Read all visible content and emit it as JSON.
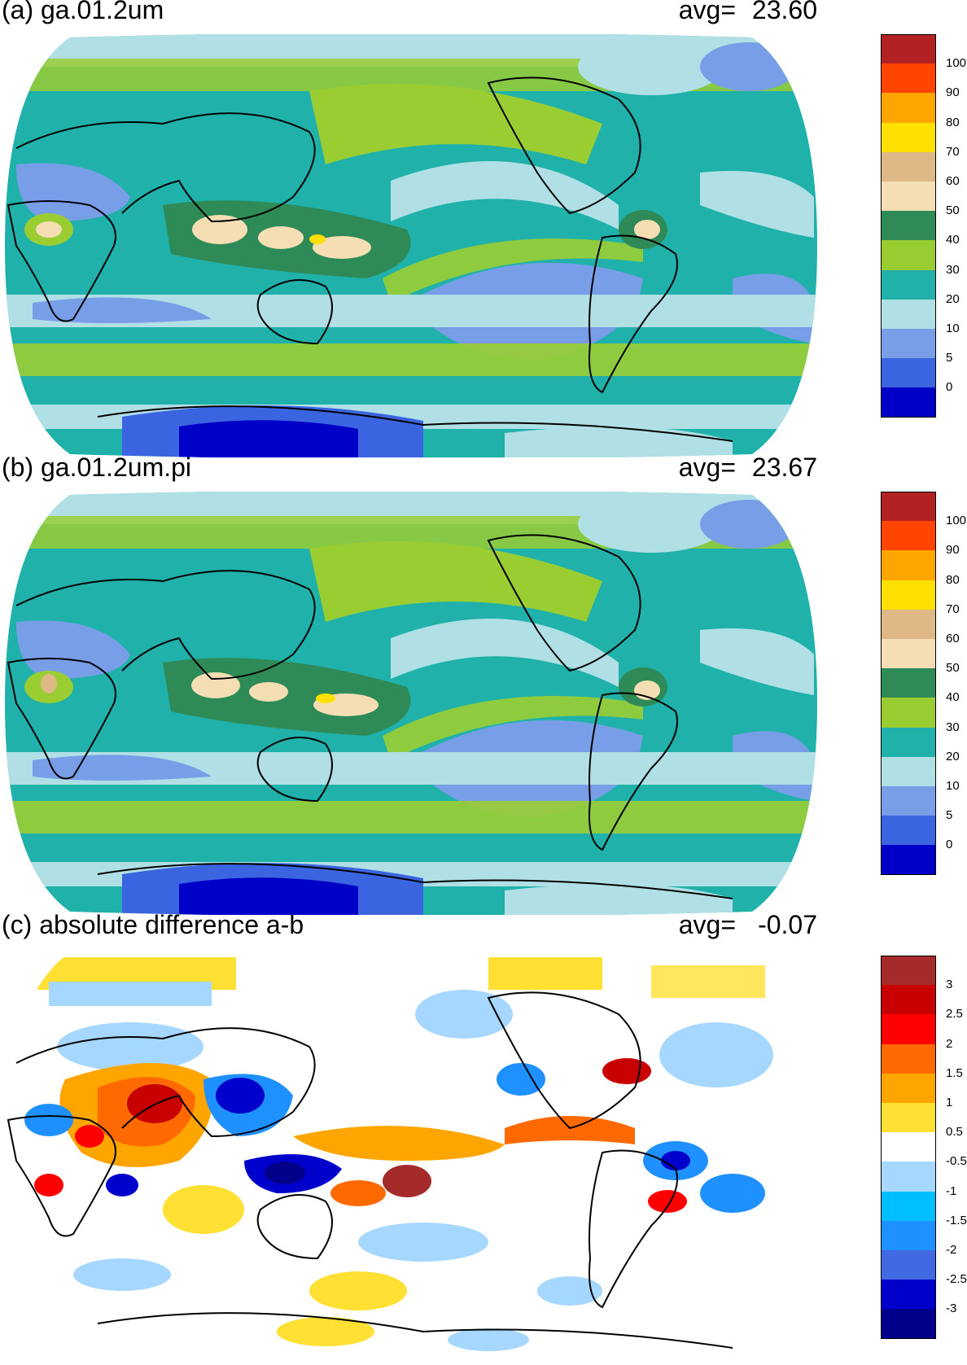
{
  "panels": [
    {
      "id": "a",
      "title": "(a) ga.01.2um",
      "avg_label": "avg=",
      "avg_value": "23.60",
      "colorbar": {
        "colors": [
          "#0000c8",
          "#3a64e0",
          "#789ee8",
          "#b0e0e6",
          "#20b2aa",
          "#9acd32",
          "#2e8b57",
          "#f5deb3",
          "#deb887",
          "#ffe000",
          "#ffa500",
          "#ff4500",
          "#b22222"
        ],
        "labels": [
          "0",
          "5",
          "10",
          "20",
          "30",
          "40",
          "50",
          "60",
          "70",
          "80",
          "90",
          "100"
        ]
      }
    },
    {
      "id": "b",
      "title": "(b) ga.01.2um.pi",
      "avg_label": "avg=",
      "avg_value": "23.67",
      "colorbar": {
        "colors": [
          "#0000c8",
          "#3a64e0",
          "#789ee8",
          "#b0e0e6",
          "#20b2aa",
          "#9acd32",
          "#2e8b57",
          "#f5deb3",
          "#deb887",
          "#ffe000",
          "#ffa500",
          "#ff4500",
          "#b22222"
        ],
        "labels": [
          "0",
          "5",
          "10",
          "20",
          "30",
          "40",
          "50",
          "60",
          "70",
          "80",
          "90",
          "100"
        ]
      }
    },
    {
      "id": "c",
      "title": "(c) absolute difference a-b",
      "avg_label": "avg=",
      "avg_value": "-0.07",
      "colorbar": {
        "colors": [
          "#00008b",
          "#0000cd",
          "#4169e1",
          "#1e90ff",
          "#00bfff",
          "#a6d8ff",
          "#ffffff",
          "#ffe033",
          "#ffa500",
          "#ff6a00",
          "#ff0000",
          "#c80000",
          "#a52a2a"
        ],
        "labels": [
          "-3",
          "-2.5",
          "-2",
          "-1.5",
          "-1",
          "-0.5",
          "0.5",
          "1",
          "1.5",
          "2",
          "2.5",
          "3"
        ]
      }
    }
  ]
}
